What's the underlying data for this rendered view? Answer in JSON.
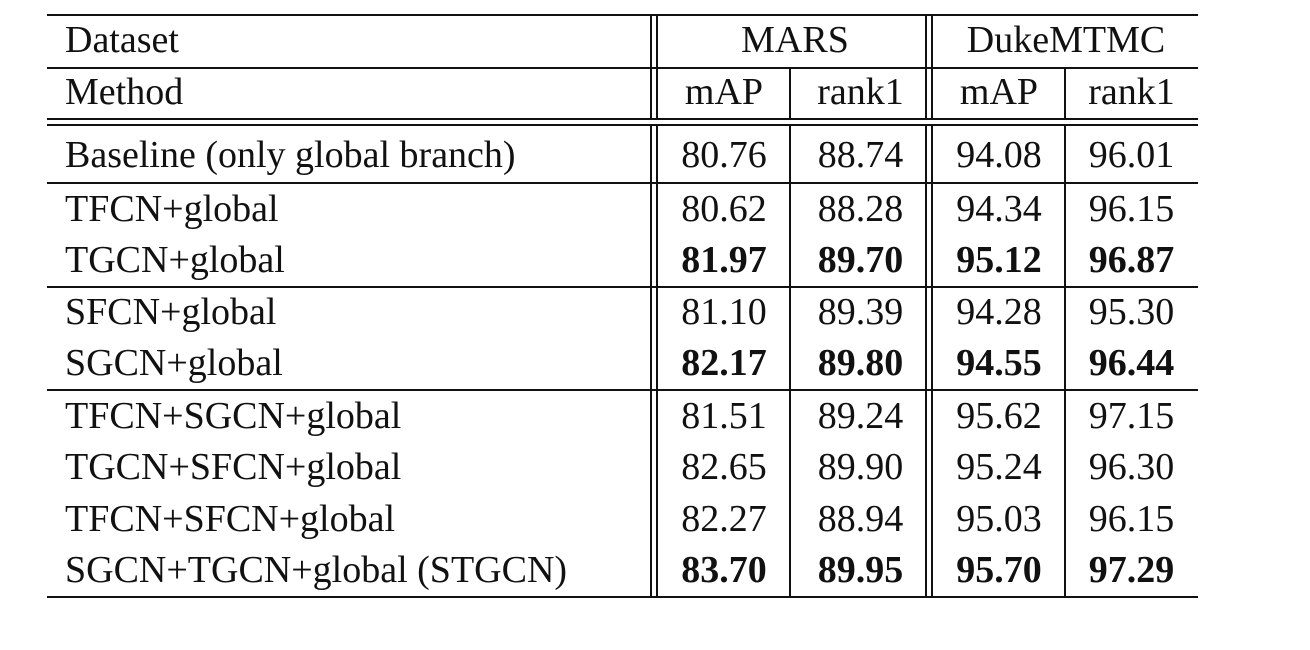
{
  "header": {
    "row1_label": "Dataset",
    "row2_label": "Method",
    "groups": [
      "MARS",
      "DukeMTMC"
    ],
    "subcols": [
      "mAP",
      "rank1",
      "mAP",
      "rank1"
    ]
  },
  "rows": [
    {
      "method": "Baseline (only global branch)",
      "values": [
        "80.76",
        "88.74",
        "94.08",
        "96.01"
      ],
      "bold": [
        false,
        false,
        false,
        false
      ]
    },
    {
      "method": "TFCN+global",
      "values": [
        "80.62",
        "88.28",
        "94.34",
        "96.15"
      ],
      "bold": [
        false,
        false,
        false,
        false
      ]
    },
    {
      "method": "TGCN+global",
      "values": [
        "81.97",
        "89.70",
        "95.12",
        "96.87"
      ],
      "bold": [
        true,
        true,
        true,
        true
      ]
    },
    {
      "method": "SFCN+global",
      "values": [
        "81.10",
        "89.39",
        "94.28",
        "95.30"
      ],
      "bold": [
        false,
        false,
        false,
        false
      ]
    },
    {
      "method": "SGCN+global",
      "values": [
        "82.17",
        "89.80",
        "94.55",
        "96.44"
      ],
      "bold": [
        true,
        true,
        true,
        true
      ]
    },
    {
      "method": "TFCN+SGCN+global",
      "values": [
        "81.51",
        "89.24",
        "95.62",
        "97.15"
      ],
      "bold": [
        false,
        false,
        false,
        false
      ]
    },
    {
      "method": "TGCN+SFCN+global",
      "values": [
        "82.65",
        "89.90",
        "95.24",
        "96.30"
      ],
      "bold": [
        false,
        false,
        false,
        false
      ]
    },
    {
      "method": "TFCN+SFCN+global",
      "values": [
        "82.27",
        "88.94",
        "95.03",
        "96.15"
      ],
      "bold": [
        false,
        false,
        false,
        false
      ]
    },
    {
      "method": "SGCN+TGCN+global (STGCN)",
      "values": [
        "83.70",
        "89.95",
        "95.70",
        "97.29"
      ],
      "bold": [
        true,
        true,
        true,
        true
      ]
    }
  ]
}
